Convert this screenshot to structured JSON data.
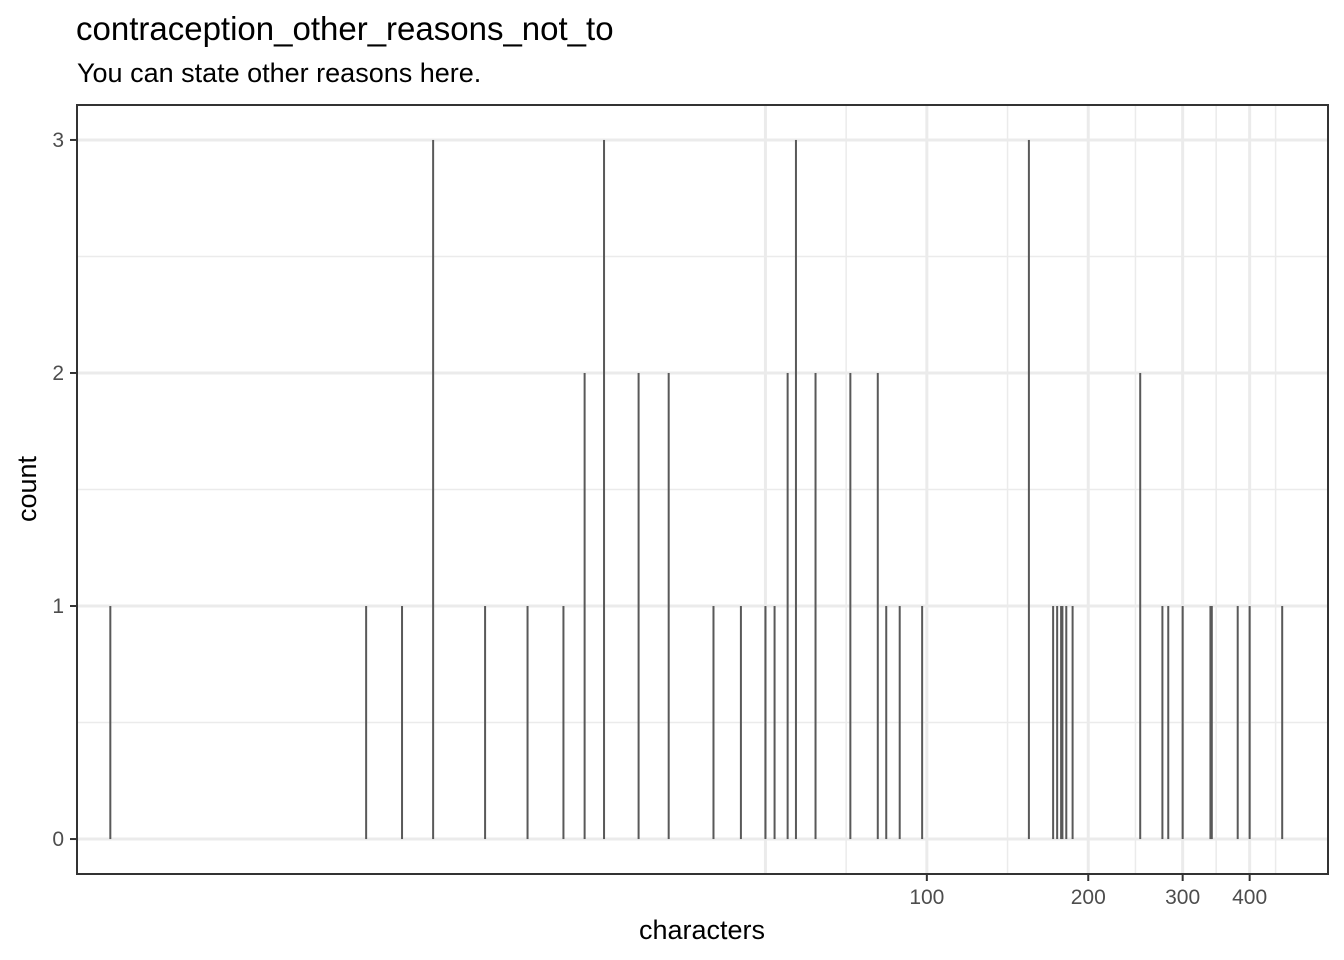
{
  "chart_data": {
    "type": "bar",
    "title": "contraception_other_reasons_not_to",
    "subtitle": "You can state other reasons here.",
    "xlabel": "characters",
    "ylabel": "count",
    "x_scale": "log10",
    "x_ticks": [
      100,
      200,
      300,
      400
    ],
    "y_ticks": [
      0,
      1,
      2,
      3
    ],
    "xlim": [
      2.6,
      560
    ],
    "ylim": [
      -0.15,
      3.15
    ],
    "grid": true,
    "bars": [
      {
        "x": 3,
        "count": 1
      },
      {
        "x": 9,
        "count": 1
      },
      {
        "x": 10.5,
        "count": 1
      },
      {
        "x": 12,
        "count": 3
      },
      {
        "x": 15,
        "count": 1
      },
      {
        "x": 18,
        "count": 1
      },
      {
        "x": 21,
        "count": 1
      },
      {
        "x": 23,
        "count": 2
      },
      {
        "x": 25,
        "count": 3
      },
      {
        "x": 29,
        "count": 2
      },
      {
        "x": 33,
        "count": 2
      },
      {
        "x": 40,
        "count": 1
      },
      {
        "x": 45,
        "count": 1
      },
      {
        "x": 50,
        "count": 1
      },
      {
        "x": 52,
        "count": 1
      },
      {
        "x": 55,
        "count": 2
      },
      {
        "x": 57,
        "count": 3
      },
      {
        "x": 62,
        "count": 2
      },
      {
        "x": 72,
        "count": 2
      },
      {
        "x": 81,
        "count": 2
      },
      {
        "x": 84,
        "count": 1
      },
      {
        "x": 89,
        "count": 1
      },
      {
        "x": 98,
        "count": 1
      },
      {
        "x": 155,
        "count": 3
      },
      {
        "x": 179,
        "count": 1
      },
      {
        "x": 182,
        "count": 1
      },
      {
        "x": 250,
        "count": 2
      },
      {
        "x": 275,
        "count": 1
      },
      {
        "x": 282,
        "count": 1
      },
      {
        "x": 300,
        "count": 1
      },
      {
        "x": 340,
        "count": 1
      },
      {
        "x": 380,
        "count": 1
      },
      {
        "x": 460,
        "count": 1
      },
      {
        "x": 172,
        "count": 1
      },
      {
        "x": 175,
        "count": 1
      },
      {
        "x": 178,
        "count": 1
      },
      {
        "x": 187,
        "count": 1
      },
      {
        "x": 338,
        "count": 1
      },
      {
        "x": 400,
        "count": 1
      }
    ]
  }
}
